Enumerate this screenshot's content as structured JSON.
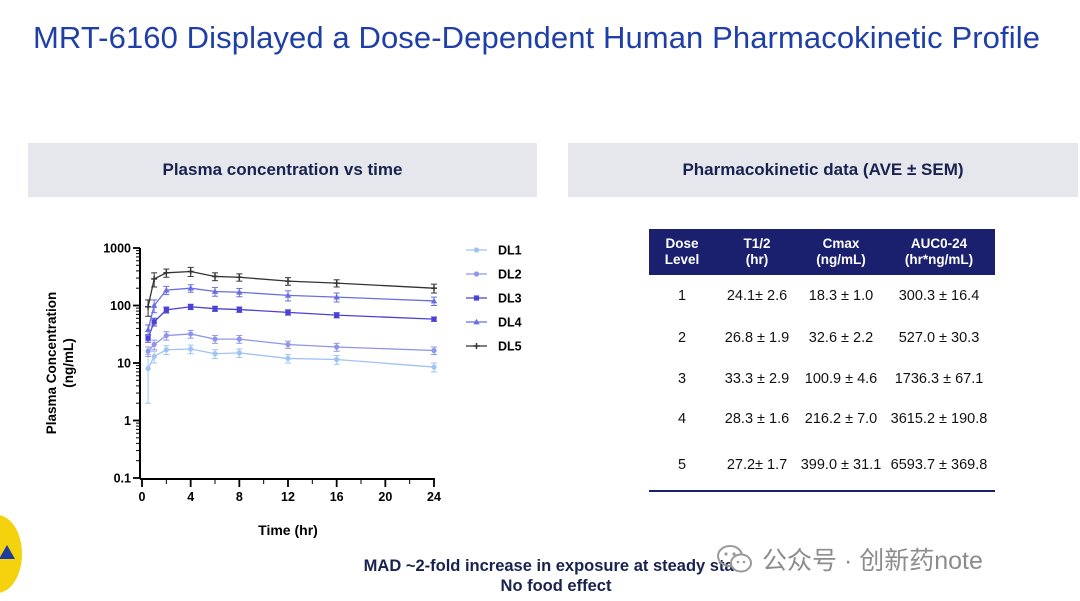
{
  "title": "MRT-6160 Displayed a Dose-Dependent Human Pharmacokinetic Profile",
  "left_panel": {
    "header": "Plasma concentration vs time"
  },
  "right_panel": {
    "header": "Pharmacokinetic data  (AVE ± SEM)"
  },
  "chart_data": {
    "type": "line",
    "title": "",
    "xlabel": "Time (hr)",
    "ylabel_line1": "Plasma Concentration",
    "ylabel_line2": "(ng/mL)",
    "x_scale": "linear",
    "y_scale": "log",
    "xlim": [
      0,
      24
    ],
    "ylim": [
      0.1,
      1000
    ],
    "x_ticks": [
      0,
      4,
      8,
      12,
      16,
      20,
      24
    ],
    "y_ticks": [
      0.1,
      1,
      10,
      100,
      1000
    ],
    "y_tick_labels": [
      "0.1",
      "1",
      "10",
      "100",
      "1000"
    ],
    "legend_position": "right",
    "x": [
      0.5,
      1,
      2,
      4,
      6,
      8,
      12,
      16,
      24
    ],
    "series": [
      {
        "name": "DL1",
        "marker": "circle",
        "color": "#9fc3f2",
        "values": [
          8,
          13,
          17,
          17.5,
          14.5,
          15,
          12,
          11.5,
          8.5
        ],
        "err": [
          6,
          3,
          3,
          3,
          2.5,
          2.5,
          2,
          2,
          1.5
        ]
      },
      {
        "name": "DL2",
        "marker": "circle",
        "color": "#8f96ea",
        "values": [
          16,
          21,
          30,
          32,
          26,
          26,
          21,
          19,
          16.5
        ],
        "err": [
          3,
          4,
          5,
          5,
          4,
          4,
          3,
          3,
          2.5
        ]
      },
      {
        "name": "DL3",
        "marker": "square",
        "color": "#4a42d6",
        "values": [
          27,
          52,
          84,
          95,
          88,
          85,
          76,
          68,
          58
        ],
        "err": [
          4,
          8,
          10,
          10,
          9,
          9,
          8,
          7,
          5
        ]
      },
      {
        "name": "DL4",
        "marker": "triangle",
        "color": "#6a6fe0",
        "values": [
          38,
          100,
          185,
          200,
          175,
          170,
          150,
          140,
          120
        ],
        "err": [
          8,
          25,
          30,
          30,
          30,
          28,
          30,
          25,
          20
        ]
      },
      {
        "name": "DL5",
        "marker": "plus",
        "color": "#333333",
        "values": [
          95,
          290,
          370,
          390,
          320,
          310,
          265,
          245,
          200
        ],
        "err": [
          30,
          80,
          60,
          70,
          50,
          45,
          40,
          35,
          35
        ]
      }
    ]
  },
  "table": {
    "headers": [
      {
        "line1": "Dose",
        "line2": "Level"
      },
      {
        "line1": "T1/2",
        "line2": "(hr)"
      },
      {
        "line1": "Cmax",
        "line2": "(ng/mL)"
      },
      {
        "line1": "AUC0-24",
        "line2": "(hr*ng/mL)"
      }
    ],
    "rows": [
      [
        "1",
        "24.1± 2.6",
        "18.3 ± 1.0",
        "300.3 ± 16.4"
      ],
      [
        "2",
        "26.8 ± 1.9",
        "32.6 ± 2.2",
        "527.0 ± 30.3"
      ],
      [
        "3",
        "33.3 ± 2.9",
        "100.9 ± 4.6",
        "1736.3 ± 67.1"
      ],
      [
        "4",
        "28.3 ± 1.6",
        "216.2 ± 7.0",
        "3615.2 ± 190.8"
      ],
      [
        "5",
        "27.2± 1.7",
        "399.0 ± 31.1",
        "6593.7 ± 369.8"
      ]
    ]
  },
  "footnote": {
    "line1": "MAD ~2-fold increase in exposure at steady state",
    "line2": "No food effect"
  },
  "watermark": {
    "text": "公众号 · 创新药note",
    "icon": "wechat-icon"
  },
  "colors": {
    "title": "#1f3fa8",
    "header_band": "#e6e7ec",
    "table_header": "#1a1f6e",
    "logo": "#f4d20e"
  }
}
